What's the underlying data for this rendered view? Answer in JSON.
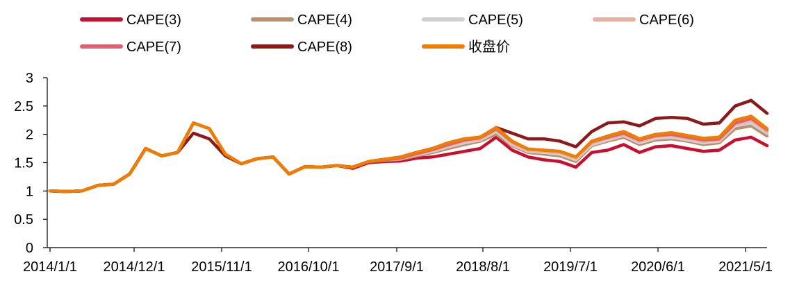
{
  "chart_data": {
    "type": "line",
    "title": "",
    "xlabel": "",
    "ylabel": "",
    "ylim": [
      0,
      3
    ],
    "y_ticks": [
      "0",
      "0.5",
      "1",
      "1.5",
      "2",
      "2.5",
      "3"
    ],
    "x_tick_labels": [
      "2014/1/1",
      "2014/12/1",
      "2015/11/1",
      "2016/10/1",
      "2017/9/1",
      "2018/8/1",
      "2019/7/1",
      "2020/6/1",
      "2021/5/1"
    ],
    "legend_position": "top",
    "grid": false,
    "x": [
      "2014/1",
      "2014/3",
      "2014/5",
      "2014/7",
      "2014/9",
      "2014/11",
      "2015/1",
      "2015/3",
      "2015/5",
      "2015/7",
      "2015/9",
      "2015/11",
      "2016/1",
      "2016/3",
      "2016/5",
      "2016/7",
      "2016/9",
      "2016/11",
      "2017/1",
      "2017/3",
      "2017/5",
      "2017/7",
      "2017/9",
      "2017/11",
      "2018/1",
      "2018/3",
      "2018/5",
      "2018/7",
      "2018/9",
      "2018/11",
      "2019/1",
      "2019/3",
      "2019/5",
      "2019/7",
      "2019/9",
      "2019/11",
      "2020/1",
      "2020/3",
      "2020/5",
      "2020/7",
      "2020/9",
      "2020/11",
      "2021/1",
      "2021/3",
      "2021/5",
      "2021/7"
    ],
    "series": [
      {
        "name": "CAPE(3)",
        "color": "#c8102e",
        "values": [
          1.0,
          0.99,
          1.0,
          1.1,
          1.12,
          1.3,
          1.75,
          1.62,
          1.68,
          2.2,
          2.1,
          1.65,
          1.48,
          1.57,
          1.6,
          1.3,
          1.43,
          1.42,
          1.45,
          1.4,
          1.5,
          1.52,
          1.53,
          1.58,
          1.6,
          1.65,
          1.7,
          1.75,
          1.95,
          1.72,
          1.6,
          1.55,
          1.52,
          1.42,
          1.68,
          1.72,
          1.82,
          1.68,
          1.78,
          1.8,
          1.75,
          1.7,
          1.72,
          1.9,
          1.95,
          1.8
        ]
      },
      {
        "name": "CAPE(4)",
        "color": "#b89070",
        "values": [
          1.0,
          0.99,
          1.0,
          1.1,
          1.12,
          1.3,
          1.75,
          1.62,
          1.68,
          2.2,
          2.1,
          1.65,
          1.48,
          1.57,
          1.6,
          1.3,
          1.43,
          1.42,
          1.45,
          1.42,
          1.52,
          1.54,
          1.56,
          1.62,
          1.68,
          1.75,
          1.82,
          1.88,
          2.0,
          1.8,
          1.68,
          1.65,
          1.62,
          1.52,
          1.8,
          1.88,
          1.95,
          1.82,
          1.9,
          1.92,
          1.88,
          1.82,
          1.85,
          2.1,
          2.15,
          1.97
        ]
      },
      {
        "name": "CAPE(5)",
        "color": "#d0d0d0",
        "values": [
          1.0,
          0.99,
          1.0,
          1.1,
          1.12,
          1.3,
          1.75,
          1.62,
          1.68,
          2.2,
          2.1,
          1.65,
          1.48,
          1.57,
          1.6,
          1.3,
          1.43,
          1.42,
          1.45,
          1.42,
          1.52,
          1.55,
          1.57,
          1.64,
          1.7,
          1.78,
          1.85,
          1.9,
          2.05,
          1.82,
          1.7,
          1.68,
          1.65,
          1.55,
          1.82,
          1.9,
          1.98,
          1.85,
          1.93,
          1.95,
          1.9,
          1.85,
          1.88,
          2.15,
          2.2,
          2.02
        ]
      },
      {
        "name": "CAPE(6)",
        "color": "#e8b0a0",
        "values": [
          1.0,
          0.99,
          1.0,
          1.1,
          1.12,
          1.3,
          1.75,
          1.62,
          1.68,
          2.2,
          2.1,
          1.65,
          1.48,
          1.57,
          1.6,
          1.3,
          1.43,
          1.42,
          1.45,
          1.42,
          1.52,
          1.55,
          1.58,
          1.65,
          1.72,
          1.8,
          1.88,
          1.92,
          2.08,
          1.85,
          1.72,
          1.7,
          1.68,
          1.58,
          1.85,
          1.93,
          2.0,
          1.88,
          1.96,
          1.98,
          1.93,
          1.88,
          1.9,
          2.18,
          2.25,
          2.05
        ]
      },
      {
        "name": "CAPE(7)",
        "color": "#e06070",
        "values": [
          1.0,
          0.99,
          1.0,
          1.1,
          1.12,
          1.3,
          1.75,
          1.62,
          1.68,
          2.2,
          2.1,
          1.65,
          1.48,
          1.57,
          1.6,
          1.3,
          1.43,
          1.42,
          1.45,
          1.42,
          1.52,
          1.55,
          1.58,
          1.66,
          1.73,
          1.82,
          1.9,
          1.94,
          2.1,
          1.87,
          1.74,
          1.72,
          1.7,
          1.6,
          1.87,
          1.95,
          2.02,
          1.9,
          1.98,
          2.0,
          1.95,
          1.9,
          1.92,
          2.2,
          2.28,
          2.08
        ]
      },
      {
        "name": "CAPE(8)",
        "color": "#8b1a1a",
        "values": [
          1.0,
          0.99,
          1.0,
          1.1,
          1.12,
          1.3,
          1.75,
          1.62,
          1.68,
          2.02,
          1.92,
          1.62,
          1.48,
          1.57,
          1.6,
          1.3,
          1.43,
          1.42,
          1.45,
          1.42,
          1.52,
          1.56,
          1.6,
          1.68,
          1.75,
          1.85,
          1.92,
          1.95,
          2.12,
          2.02,
          1.92,
          1.92,
          1.88,
          1.78,
          2.05,
          2.2,
          2.22,
          2.15,
          2.28,
          2.3,
          2.28,
          2.18,
          2.2,
          2.5,
          2.6,
          2.37
        ]
      },
      {
        "name": "收盘价",
        "color": "#ef7d00",
        "values": [
          1.0,
          0.99,
          1.0,
          1.1,
          1.12,
          1.3,
          1.75,
          1.62,
          1.68,
          2.2,
          2.1,
          1.65,
          1.48,
          1.57,
          1.6,
          1.3,
          1.43,
          1.42,
          1.45,
          1.42,
          1.52,
          1.56,
          1.6,
          1.68,
          1.75,
          1.85,
          1.92,
          1.95,
          2.12,
          1.88,
          1.74,
          1.72,
          1.7,
          1.6,
          1.88,
          1.97,
          2.05,
          1.92,
          2.0,
          2.03,
          1.98,
          1.93,
          1.95,
          2.25,
          2.32,
          2.1
        ]
      }
    ]
  }
}
